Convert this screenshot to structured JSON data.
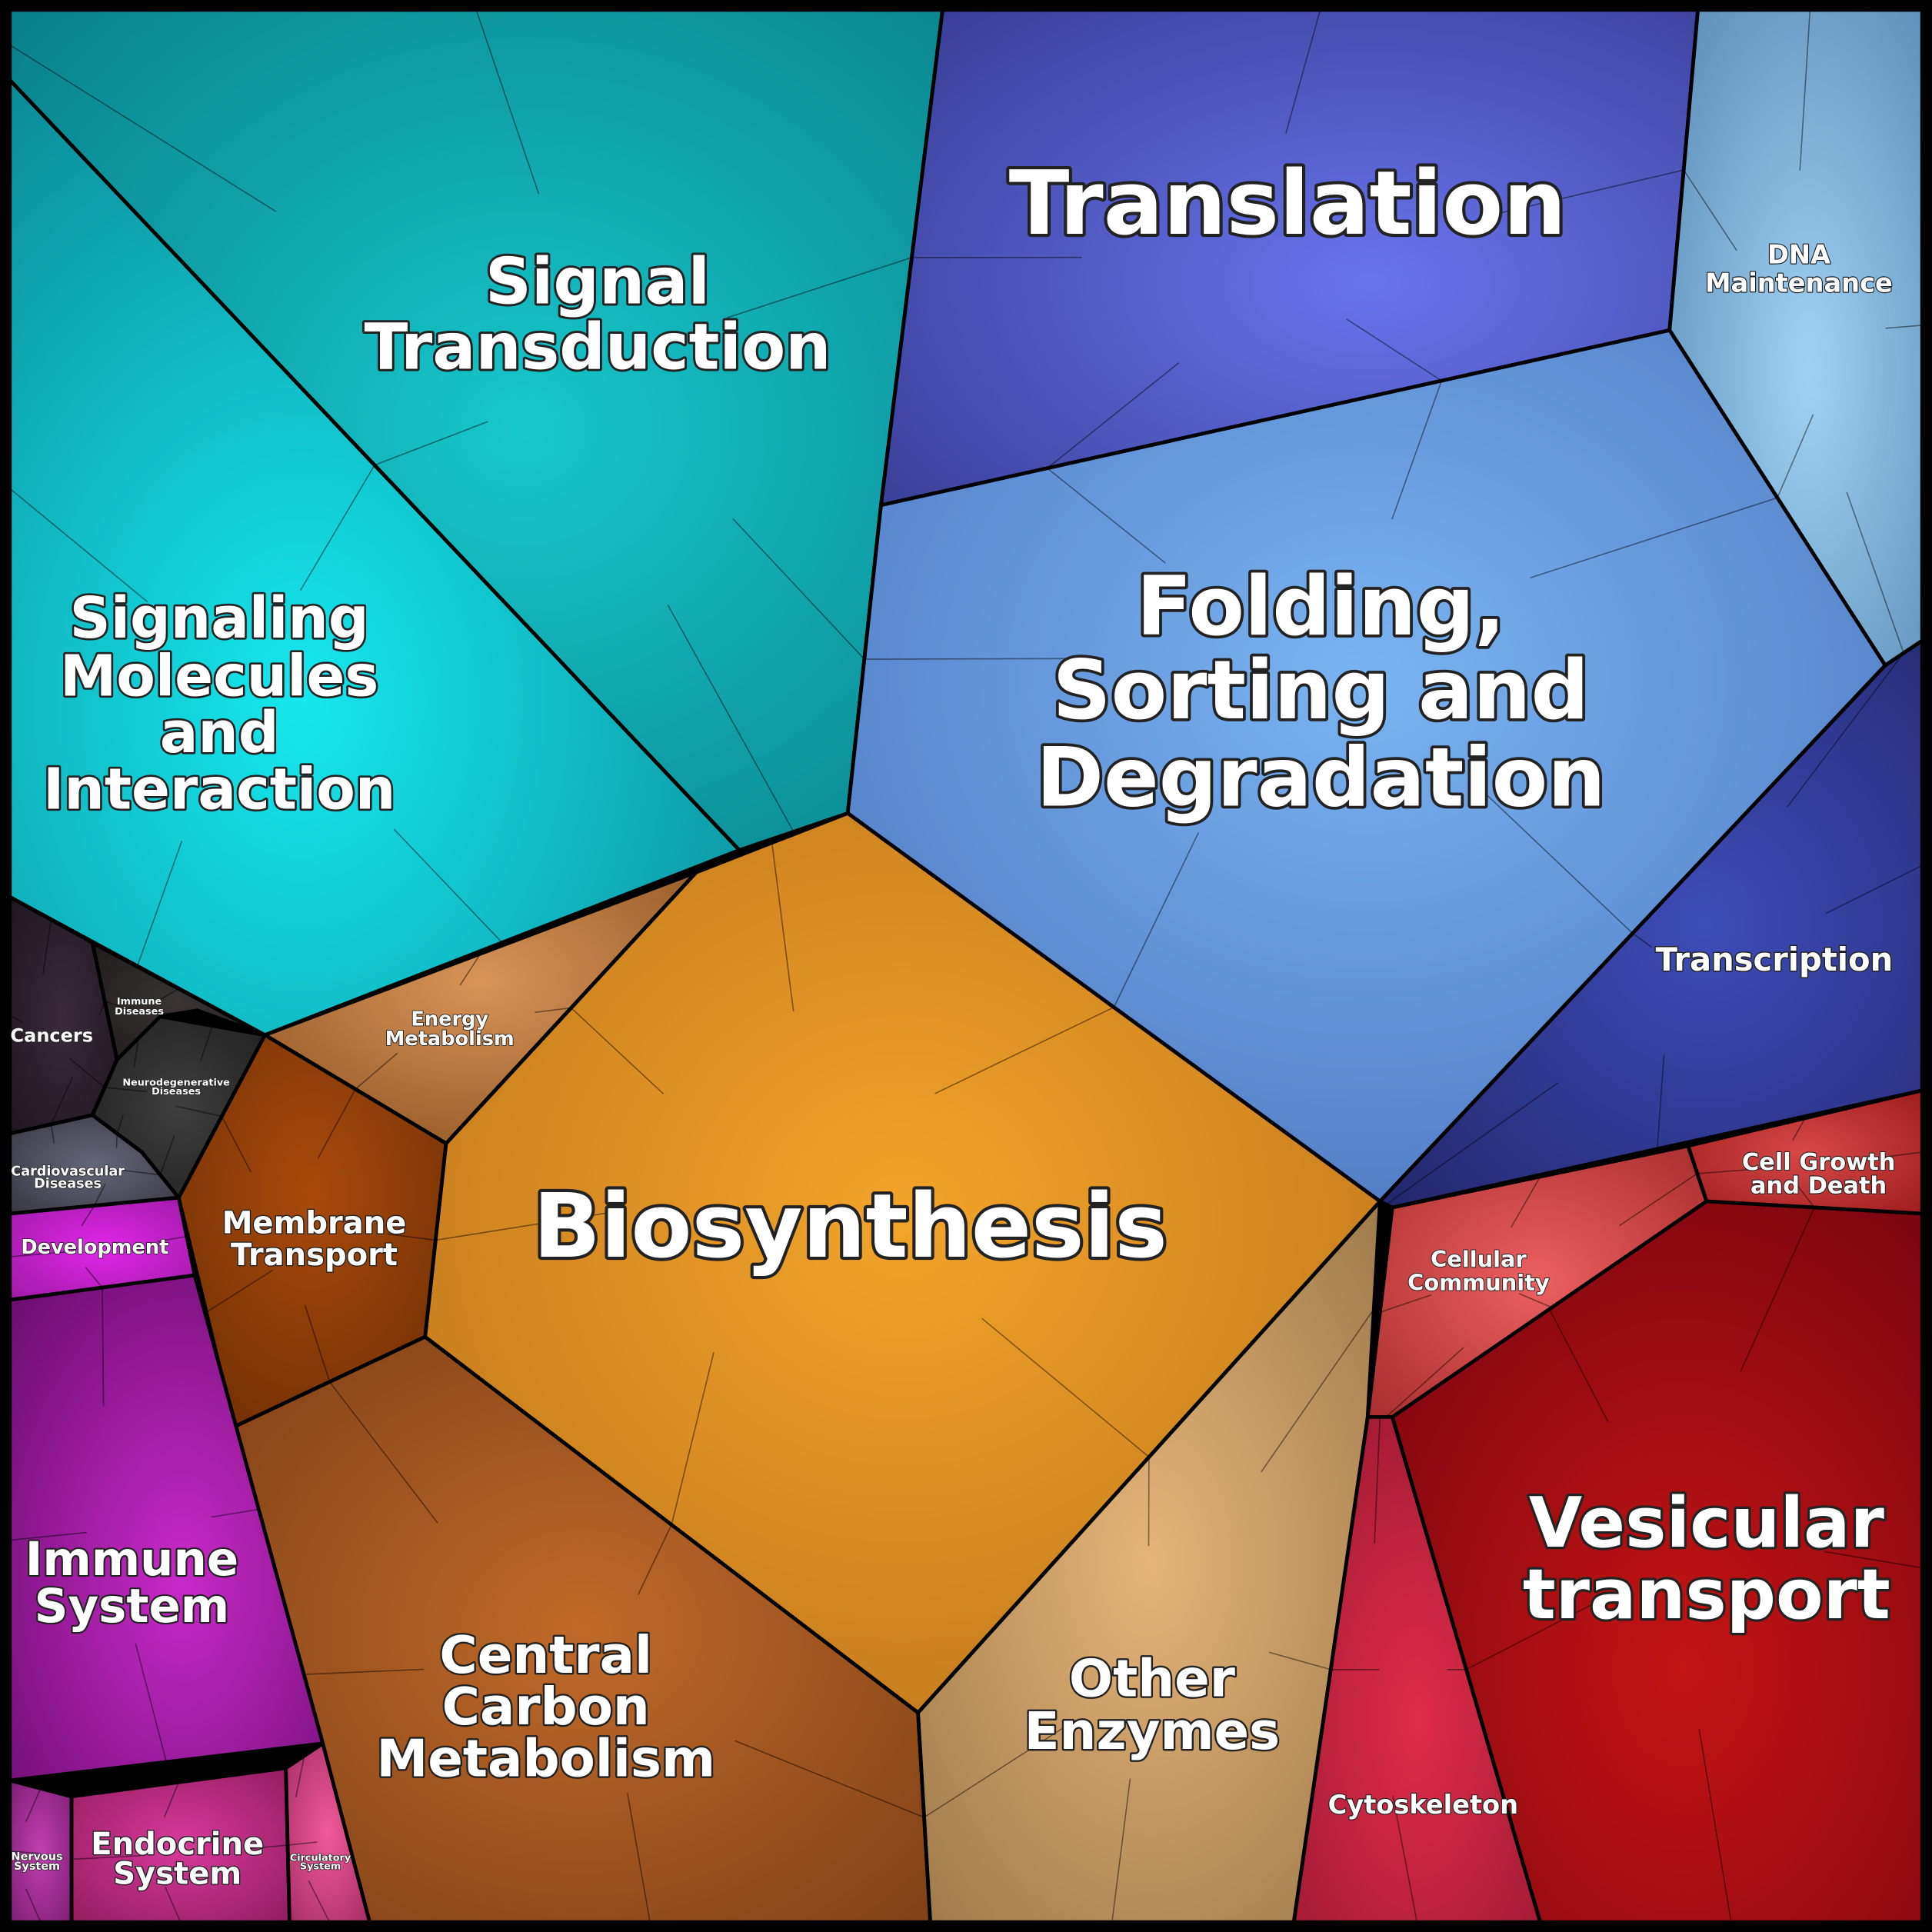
{
  "regions": [
    {
      "lines": [
        "Signal",
        "Transduction"
      ]
    },
    {
      "lines": [
        "Signaling",
        "Molecules",
        "and",
        "Interaction"
      ]
    },
    {
      "lines": [
        "Translation"
      ]
    },
    {
      "lines": [
        "DNA",
        "Maintenance"
      ]
    },
    {
      "lines": [
        "Folding,",
        "Sorting and",
        "Degradation"
      ]
    },
    {
      "lines": [
        "Transcription"
      ]
    },
    {
      "lines": [
        "Cell Growth",
        "and Death"
      ]
    },
    {
      "lines": [
        "Cellular",
        "Community"
      ]
    },
    {
      "lines": [
        "Vesicular",
        "transport"
      ]
    },
    {
      "lines": [
        "Cytoskeleton"
      ]
    },
    {
      "lines": [
        "Other",
        "Enzymes"
      ]
    },
    {
      "lines": [
        "Biosynthesis"
      ]
    },
    {
      "lines": [
        "Energy",
        "Metabolism"
      ]
    },
    {
      "lines": [
        "Membrane",
        "Transport"
      ]
    },
    {
      "lines": [
        "Central",
        "Carbon",
        "Metabolism"
      ]
    },
    {
      "lines": [
        "Cancers"
      ]
    },
    {
      "lines": [
        "Immune",
        "Diseases"
      ]
    },
    {
      "lines": [
        "Neurodegenerative",
        "Diseases"
      ]
    },
    {
      "lines": [
        "Cardiovascular",
        "Diseases"
      ]
    },
    {
      "lines": [
        "Development"
      ]
    },
    {
      "lines": [
        "Immune",
        "System"
      ]
    },
    {
      "lines": [
        "Endocrine",
        "System"
      ]
    },
    {
      "lines": [
        "Nervous",
        "System"
      ]
    },
    {
      "lines": [
        "Circulatory",
        "System"
      ]
    }
  ]
}
